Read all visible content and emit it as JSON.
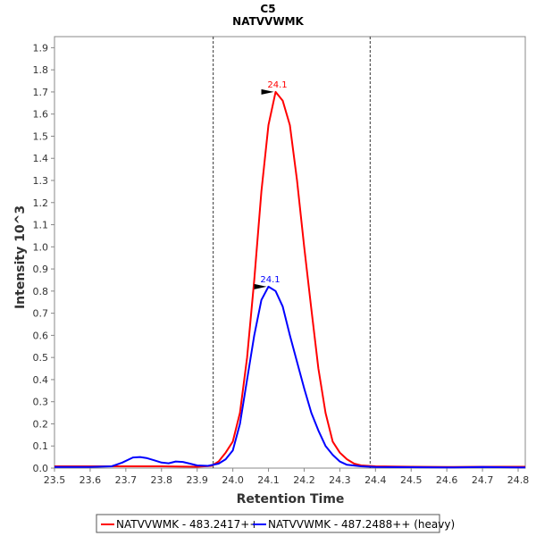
{
  "chart_data": {
    "type": "line",
    "title": "C5",
    "subtitle": "NATVVWMK",
    "xlabel": "Retention Time",
    "ylabel": "Intensity 10^3",
    "xlim": [
      23.5,
      24.82
    ],
    "ylim": [
      0,
      1.95
    ],
    "x_ticks": [
      "23.5",
      "23.6",
      "23.7",
      "23.8",
      "23.9",
      "24.0",
      "24.1",
      "24.2",
      "24.3",
      "24.4",
      "24.5",
      "24.6",
      "24.7",
      "24.8"
    ],
    "y_ticks": [
      "0.0",
      "0.1",
      "0.2",
      "0.3",
      "0.4",
      "0.5",
      "0.6",
      "0.7",
      "0.8",
      "0.9",
      "1.0",
      "1.1",
      "1.2",
      "1.3",
      "1.4",
      "1.5",
      "1.6",
      "1.7",
      "1.8",
      "1.9"
    ],
    "grid": false,
    "legend_position": "bottom",
    "boundaries": [
      23.945,
      24.385
    ],
    "series": [
      {
        "name": "NATVVWMK - 483.2417++",
        "color": "#ff0000",
        "peak_label": "24.1",
        "peak": [
          24.12,
          1.7
        ],
        "points": [
          [
            23.5,
            0.008
          ],
          [
            23.6,
            0.008
          ],
          [
            23.7,
            0.008
          ],
          [
            23.8,
            0.008
          ],
          [
            23.9,
            0.006
          ],
          [
            23.94,
            0.01
          ],
          [
            23.96,
            0.03
          ],
          [
            23.98,
            0.07
          ],
          [
            24.0,
            0.12
          ],
          [
            24.02,
            0.25
          ],
          [
            24.04,
            0.5
          ],
          [
            24.06,
            0.85
          ],
          [
            24.08,
            1.25
          ],
          [
            24.1,
            1.55
          ],
          [
            24.12,
            1.7
          ],
          [
            24.14,
            1.66
          ],
          [
            24.16,
            1.55
          ],
          [
            24.18,
            1.3
          ],
          [
            24.2,
            1.0
          ],
          [
            24.22,
            0.72
          ],
          [
            24.24,
            0.45
          ],
          [
            24.26,
            0.25
          ],
          [
            24.28,
            0.12
          ],
          [
            24.3,
            0.07
          ],
          [
            24.32,
            0.04
          ],
          [
            24.34,
            0.02
          ],
          [
            24.36,
            0.012
          ],
          [
            24.4,
            0.008
          ],
          [
            24.5,
            0.006
          ],
          [
            24.6,
            0.005
          ],
          [
            24.7,
            0.006
          ],
          [
            24.8,
            0.006
          ],
          [
            24.82,
            0.006
          ]
        ]
      },
      {
        "name": "NATVVWMK - 487.2488++ (heavy)",
        "color": "#0000ff",
        "peak_label": "24.1",
        "peak": [
          24.1,
          0.82
        ],
        "points": [
          [
            23.5,
            0.005
          ],
          [
            23.6,
            0.005
          ],
          [
            23.66,
            0.008
          ],
          [
            23.69,
            0.025
          ],
          [
            23.72,
            0.048
          ],
          [
            23.74,
            0.05
          ],
          [
            23.76,
            0.045
          ],
          [
            23.78,
            0.035
          ],
          [
            23.8,
            0.025
          ],
          [
            23.82,
            0.022
          ],
          [
            23.84,
            0.03
          ],
          [
            23.86,
            0.028
          ],
          [
            23.88,
            0.02
          ],
          [
            23.9,
            0.012
          ],
          [
            23.93,
            0.01
          ],
          [
            23.96,
            0.02
          ],
          [
            23.98,
            0.04
          ],
          [
            24.0,
            0.08
          ],
          [
            24.02,
            0.2
          ],
          [
            24.04,
            0.4
          ],
          [
            24.06,
            0.6
          ],
          [
            24.08,
            0.76
          ],
          [
            24.1,
            0.82
          ],
          [
            24.12,
            0.8
          ],
          [
            24.14,
            0.73
          ],
          [
            24.16,
            0.6
          ],
          [
            24.18,
            0.48
          ],
          [
            24.2,
            0.36
          ],
          [
            24.22,
            0.25
          ],
          [
            24.24,
            0.17
          ],
          [
            24.26,
            0.1
          ],
          [
            24.28,
            0.06
          ],
          [
            24.3,
            0.03
          ],
          [
            24.32,
            0.015
          ],
          [
            24.36,
            0.008
          ],
          [
            24.4,
            0.005
          ],
          [
            24.5,
            0.004
          ],
          [
            24.6,
            0.003
          ],
          [
            24.7,
            0.005
          ],
          [
            24.8,
            0.003
          ],
          [
            24.82,
            0.003
          ]
        ]
      }
    ]
  }
}
